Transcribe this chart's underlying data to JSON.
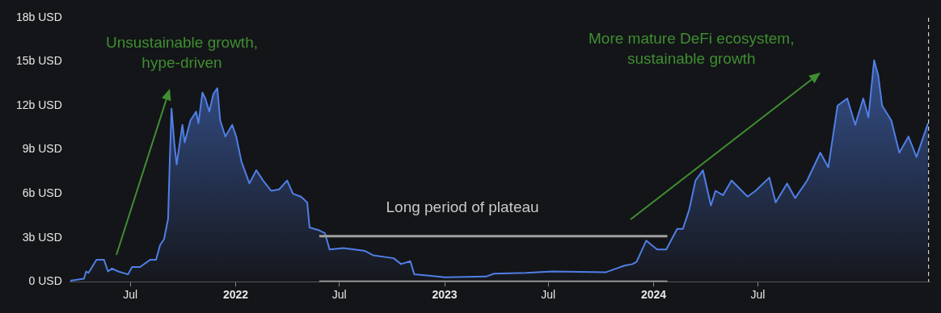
{
  "chart_data": {
    "type": "area",
    "xlim": [
      "2021-03-18",
      "2025-04-27"
    ],
    "ylim": [
      0,
      18
    ],
    "xticks": [
      {
        "value": "2021-07-01",
        "label": "Jul"
      },
      {
        "value": "2022-01-01",
        "label": "2022"
      },
      {
        "value": "2022-07-01",
        "label": "Jul"
      },
      {
        "value": "2023-01-01",
        "label": "2023"
      },
      {
        "value": "2023-07-01",
        "label": "Jul"
      },
      {
        "value": "2024-01-01",
        "label": "2024"
      },
      {
        "value": "2024-07-01",
        "label": "Jul"
      }
    ],
    "yticks": [
      {
        "value": 0,
        "label": "0 USD"
      },
      {
        "value": 3,
        "label": "3b USD"
      },
      {
        "value": 6,
        "label": "6b USD"
      },
      {
        "value": 9,
        "label": "9b USD"
      },
      {
        "value": 12,
        "label": "12b USD"
      },
      {
        "value": 15,
        "label": "15b USD"
      },
      {
        "value": 18,
        "label": "18b USD"
      }
    ],
    "grid": false,
    "legend": false,
    "marker": "none",
    "series": [
      {
        "type": "area",
        "color": "#4f7fe6",
        "x": [
          "2021-03-18",
          "2021-04-11",
          "2021-04-15",
          "2021-04-19",
          "2021-05-03",
          "2021-05-16",
          "2021-05-23",
          "2021-05-30",
          "2021-06-10",
          "2021-06-27",
          "2021-07-04",
          "2021-07-18",
          "2021-08-05",
          "2021-08-15",
          "2021-08-22",
          "2021-08-29",
          "2021-09-05",
          "2021-09-08",
          "2021-09-11",
          "2021-09-16",
          "2021-09-20",
          "2021-09-30",
          "2021-10-04",
          "2021-10-14",
          "2021-10-24",
          "2021-10-28",
          "2021-11-04",
          "2021-11-09",
          "2021-11-16",
          "2021-11-23",
          "2021-11-30",
          "2021-12-05",
          "2021-12-14",
          "2021-12-26",
          "2022-01-02",
          "2022-01-11",
          "2022-01-25",
          "2022-02-06",
          "2022-02-18",
          "2022-03-04",
          "2022-03-18",
          "2022-04-01",
          "2022-04-11",
          "2022-04-25",
          "2022-05-06",
          "2022-05-10",
          "2022-05-27",
          "2022-06-06",
          "2022-06-14",
          "2022-07-08",
          "2022-08-15",
          "2022-08-29",
          "2022-10-04",
          "2022-10-17",
          "2022-11-02",
          "2022-11-09",
          "2022-12-09",
          "2023-01-02",
          "2023-03-14",
          "2023-03-28",
          "2023-05-23",
          "2023-07-08",
          "2023-10-10",
          "2023-11-11",
          "2023-11-25",
          "2023-12-02",
          "2023-12-19",
          "2024-01-07",
          "2024-01-23",
          "2024-02-11",
          "2024-02-21",
          "2024-03-03",
          "2024-03-14",
          "2024-03-27",
          "2024-04-10",
          "2024-04-18",
          "2024-05-01",
          "2024-05-16",
          "2024-06-13",
          "2024-06-27",
          "2024-07-21",
          "2024-08-01",
          "2024-08-21",
          "2024-09-04",
          "2024-09-25",
          "2024-10-18",
          "2024-11-01",
          "2024-11-17",
          "2024-12-04",
          "2024-12-18",
          "2025-01-01",
          "2025-01-10",
          "2025-01-20",
          "2025-01-27",
          "2025-02-03",
          "2025-02-19",
          "2025-03-05",
          "2025-03-21",
          "2025-04-04",
          "2025-04-24"
        ],
        "values": [
          0.06,
          0.2,
          0.7,
          0.6,
          1.5,
          1.5,
          0.7,
          0.9,
          0.7,
          0.5,
          1.0,
          1.0,
          1.5,
          1.5,
          2.5,
          2.9,
          4.3,
          8.4,
          11.8,
          9.4,
          8.0,
          10.7,
          9.5,
          11.0,
          11.6,
          10.8,
          12.9,
          12.5,
          11.6,
          12.8,
          13.2,
          11.0,
          9.9,
          10.7,
          9.9,
          8.2,
          6.7,
          7.6,
          6.9,
          6.2,
          6.3,
          6.9,
          6.0,
          5.8,
          5.4,
          3.7,
          3.5,
          3.3,
          2.2,
          2.3,
          2.1,
          1.8,
          1.6,
          1.2,
          1.4,
          0.5,
          0.4,
          0.3,
          0.35,
          0.55,
          0.6,
          0.7,
          0.65,
          1.1,
          1.2,
          1.35,
          2.8,
          2.2,
          2.2,
          3.6,
          3.6,
          4.9,
          6.9,
          7.6,
          5.2,
          6.2,
          5.9,
          6.9,
          5.8,
          6.2,
          7.1,
          5.4,
          6.7,
          5.7,
          6.9,
          8.8,
          7.8,
          12.0,
          12.5,
          10.7,
          12.5,
          11.2,
          15.1,
          14.1,
          12.0,
          11.0,
          8.8,
          9.9,
          8.5,
          10.8
        ]
      },
      {
        "type": "line",
        "color": "#a0a0a0",
        "x": [
          "2022-05-27",
          "2024-01-25"
        ],
        "values": [
          3.1,
          3.1
        ]
      },
      {
        "type": "line",
        "color": "#a0a0a0",
        "x": [
          "2022-05-27",
          "2024-01-25"
        ],
        "values": [
          0,
          0
        ]
      }
    ],
    "ref_lines": [
      {
        "axis": "x",
        "value": "2025-04-25",
        "color": "#d0d0d0",
        "line_style": "dashed"
      }
    ],
    "annotations": [
      "Unsustainable growth,\nhype-driven",
      "More mature DeFi ecosystem,\nsustainable growth",
      "Long period of plateau"
    ]
  }
}
